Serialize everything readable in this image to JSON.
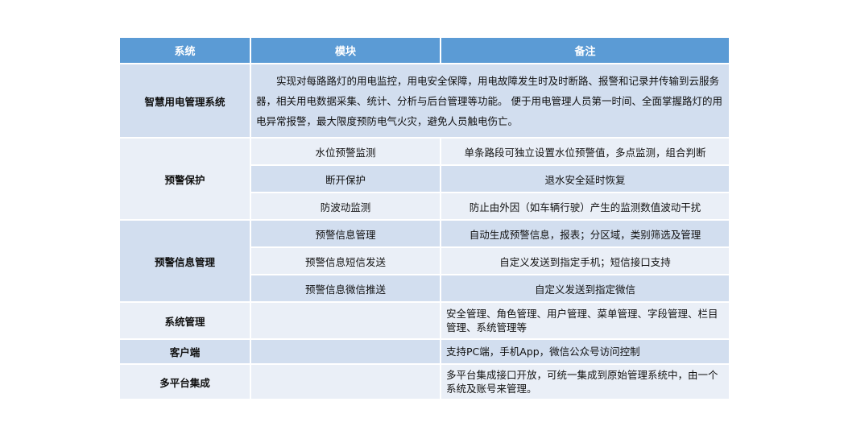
{
  "header": {
    "system": "系统",
    "module": "模块",
    "note": "备注"
  },
  "rows": {
    "smart": {
      "system": "智慧用电管理系统",
      "note": "实现对每路路灯的用电监控，用电安全保障，用电故障发生时及时断路、报警和记录并传输到云服务器，相关用电数据采集、统计、分析与后台管理等功能。 便于用电管理人员第一时间、全面掌握路灯的用电异常报警，最大限度预防电气火灾，避免人员触电伤亡。"
    },
    "warning": {
      "system": "预警保护",
      "items": [
        {
          "module": "水位预警监测",
          "note": "单条路段可独立设置水位预警值，多点监测，组合判断"
        },
        {
          "module": "断开保护",
          "note": "退水安全延时恢复"
        },
        {
          "module": "防波动监测",
          "note": "防止由外因（如车辆行驶）产生的监测数值波动干扰"
        }
      ]
    },
    "info": {
      "system": "预警信息管理",
      "items": [
        {
          "module": "预警信息管理",
          "note": "自动生成预警信息，报表；分区域，类别筛选及管理"
        },
        {
          "module": "预警信息短信发送",
          "note": "自定义发送到指定手机；短信接口支持"
        },
        {
          "module": "预警信息微信推送",
          "note": "自定义发送到指定微信"
        }
      ]
    },
    "sysmgmt": {
      "system": "系统管理",
      "module": "",
      "note": "安全管理、角色管理、用户管理、菜单管理、字段管理、栏目管理、系统管理等"
    },
    "client": {
      "system": "客户端",
      "module": "",
      "note": "支持PC端，手机App，微信公众号访问控制"
    },
    "multi": {
      "system": "多平台集成",
      "module": "",
      "note": "多平台集成接口开放，可统一集成到原始管理系统中，由一个系统及账号来管理。"
    }
  },
  "colors": {
    "header": "#5b9bd5",
    "row_dark": "#d2deef",
    "row_light": "#eaeff7"
  }
}
